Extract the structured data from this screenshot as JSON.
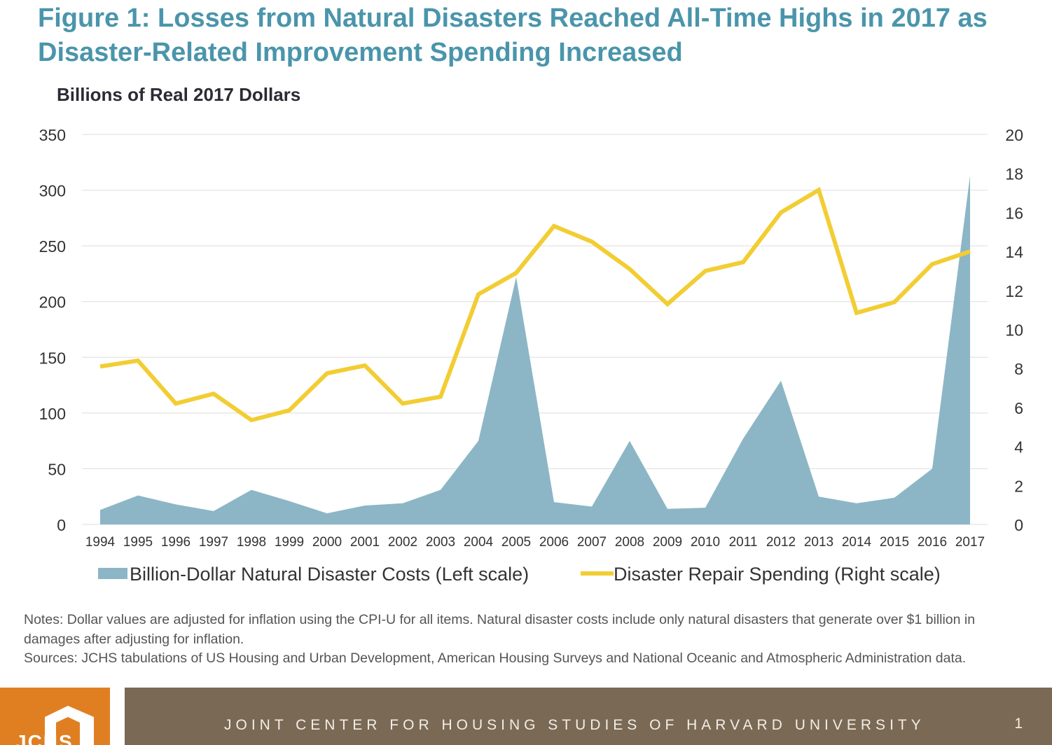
{
  "title": "Figure 1: Losses from Natural Disasters Reached All-Time Highs in 2017 as Disaster-Related Improvement Spending Increased",
  "notes": "Notes: Dollar values are adjusted for inflation using the CPI-U for all items. Natural disaster costs include only natural disasters that generate over $1 billion in damages after adjusting for inflation.",
  "sources": "Sources: JCHS tabulations of US Housing and Urban Development, American Housing Surveys and National Oceanic and Atmospheric Administration data.",
  "footer": {
    "org": "JOINT CENTER FOR HOUSING STUDIES OF HARVARD UNIVERSITY",
    "page": "1",
    "logo": "JCHS"
  },
  "colors": {
    "title": "#4a95ab",
    "area": "#8cb6c6",
    "line": "#f2cd33",
    "logo": "#e07f22",
    "band": "#7a6955"
  },
  "chart_data": {
    "type": "area+line",
    "ylabel": "Billions of Real 2017 Dollars",
    "categories": [
      "1994",
      "1995",
      "1996",
      "1997",
      "1998",
      "1999",
      "2000",
      "2001",
      "2002",
      "2003",
      "2004",
      "2005",
      "2006",
      "2007",
      "2008",
      "2009",
      "2010",
      "2011",
      "2012",
      "2013",
      "2014",
      "2015",
      "2016",
      "2017"
    ],
    "left_axis": {
      "ylim": [
        0,
        350
      ],
      "ticks": [
        0,
        50,
        100,
        150,
        200,
        250,
        300,
        350
      ]
    },
    "right_axis": {
      "ylim": [
        0,
        20
      ],
      "ticks": [
        0,
        2,
        4,
        6,
        8,
        10,
        12,
        14,
        16,
        18,
        20
      ]
    },
    "grid": true,
    "legend_placement": "bottom",
    "series": [
      {
        "name": "Billion-Dollar Natural Disaster Costs (Left scale)",
        "type": "area",
        "axis": "left",
        "values": [
          13,
          26,
          18,
          12,
          31,
          21,
          10,
          17,
          19,
          31,
          75,
          222,
          20,
          16,
          75,
          14,
          15,
          77,
          129,
          25,
          19,
          24,
          50,
          313
        ]
      },
      {
        "name": "Disaster Repair Spending (Right scale)",
        "type": "line",
        "axis": "right",
        "values": [
          8.1,
          8.4,
          6.2,
          6.7,
          5.35,
          5.85,
          7.75,
          8.15,
          6.2,
          6.55,
          11.8,
          12.9,
          15.3,
          14.5,
          13.1,
          11.3,
          13.0,
          13.45,
          16.0,
          17.15,
          10.85,
          11.4,
          13.35,
          14.0
        ]
      }
    ]
  }
}
